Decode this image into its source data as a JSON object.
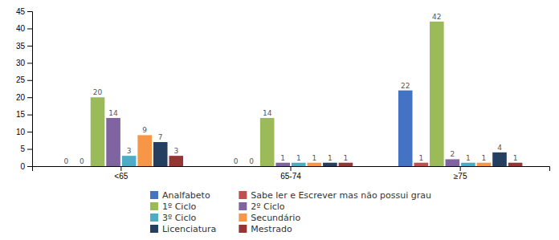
{
  "chart_data": {
    "type": "bar",
    "categories": [
      "<65",
      "65-74",
      "≥75"
    ],
    "series": [
      {
        "name": "Analfabeto",
        "color": "#4472C4",
        "values": [
          0,
          0,
          22
        ]
      },
      {
        "name": "Sabe ler e Escrever mas não possui grau",
        "color": "#C0504D",
        "values": [
          0,
          0,
          1
        ]
      },
      {
        "name": "1º Ciclo",
        "color": "#9BBB59",
        "values": [
          20,
          14,
          42
        ]
      },
      {
        "name": "2º Ciclo",
        "color": "#8064A2",
        "values": [
          14,
          1,
          2
        ]
      },
      {
        "name": "3º Ciclo",
        "color": "#4BACC6",
        "values": [
          3,
          1,
          1
        ]
      },
      {
        "name": "Secundário",
        "color": "#F79646",
        "values": [
          9,
          1,
          1
        ]
      },
      {
        "name": "Licenciatura",
        "color": "#243F60",
        "values": [
          7,
          1,
          4
        ]
      },
      {
        "name": "Mestrado",
        "color": "#963634",
        "values": [
          3,
          1,
          1
        ]
      }
    ],
    "ylim": [
      0,
      45
    ],
    "yticks": [
      0,
      5,
      10,
      15,
      20,
      25,
      30,
      35,
      40,
      45
    ],
    "grid": false,
    "legend": "bottom",
    "data_labels": true
  }
}
